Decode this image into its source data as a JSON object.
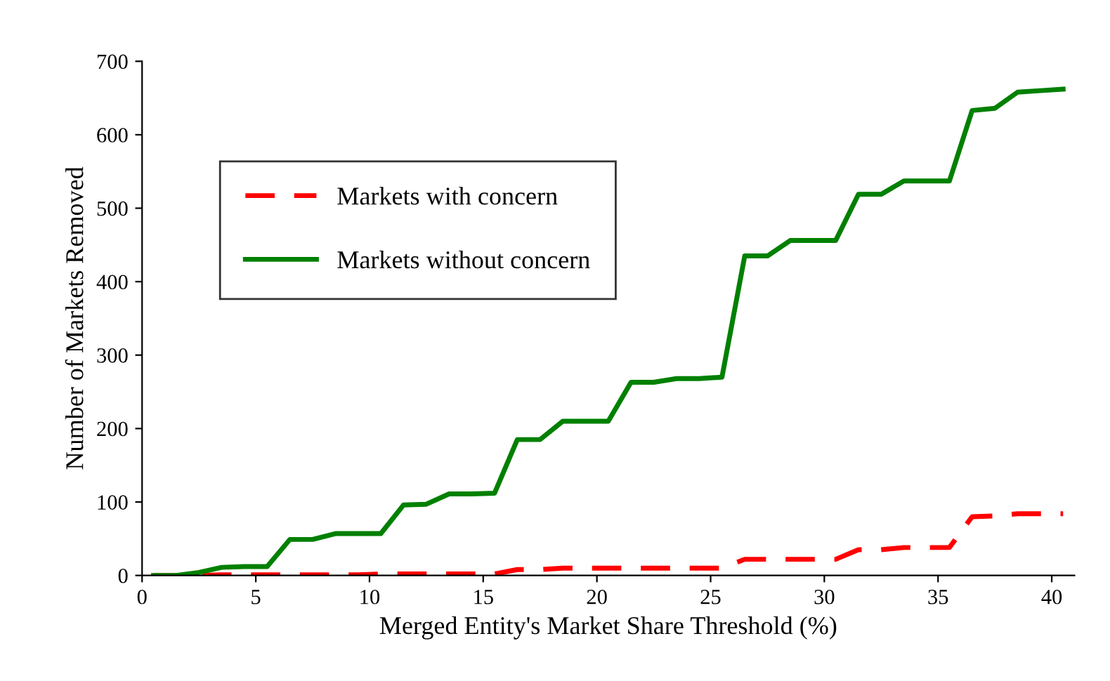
{
  "chart_data": {
    "type": "line",
    "xlabel": "Merged Entity's Market Share Threshold (%)",
    "ylabel": "Number of Markets Removed",
    "x": [
      0.5,
      1.5,
      2.5,
      3.5,
      4.5,
      5.5,
      6.5,
      7.5,
      8.5,
      9.5,
      10.5,
      11.5,
      12.5,
      13.5,
      14.5,
      15.5,
      16.5,
      17.5,
      18.5,
      19.5,
      20.5,
      21.5,
      22.5,
      23.5,
      24.5,
      25.5,
      26.5,
      27.5,
      28.5,
      29.5,
      30.5,
      31.5,
      32.5,
      33.5,
      34.5,
      35.5,
      36.5,
      37.5,
      38.5,
      39.5,
      40.5
    ],
    "series": [
      {
        "name": "Markets with concern",
        "color": "#ff0000",
        "line_style": "dashed",
        "values": [
          0,
          0,
          0,
          1,
          1,
          1,
          1,
          1,
          1,
          1,
          2,
          2,
          2,
          2,
          2,
          2,
          8,
          8,
          10,
          10,
          10,
          10,
          10,
          10,
          10,
          10,
          22,
          22,
          22,
          22,
          22,
          35,
          35,
          38,
          38,
          38,
          80,
          81,
          84,
          84,
          84
        ]
      },
      {
        "name": "Markets without concern",
        "color": "#008000",
        "line_style": "solid",
        "values": [
          0,
          0,
          4,
          11,
          12,
          12,
          49,
          49,
          57,
          57,
          57,
          96,
          97,
          111,
          111,
          112,
          185,
          185,
          210,
          210,
          210,
          263,
          263,
          268,
          268,
          270,
          435,
          435,
          456,
          456,
          456,
          519,
          519,
          537,
          537,
          537,
          633,
          636,
          658,
          660,
          662
        ]
      }
    ],
    "xlim": [
      0,
      41
    ],
    "xticks": [
      0,
      5,
      10,
      15,
      20,
      25,
      30,
      35,
      40
    ],
    "ylim": [
      0,
      700
    ],
    "yticks": [
      0,
      100,
      200,
      300,
      400,
      500,
      600,
      700
    ],
    "grid": false,
    "legend": "top left",
    "marker": "none"
  }
}
